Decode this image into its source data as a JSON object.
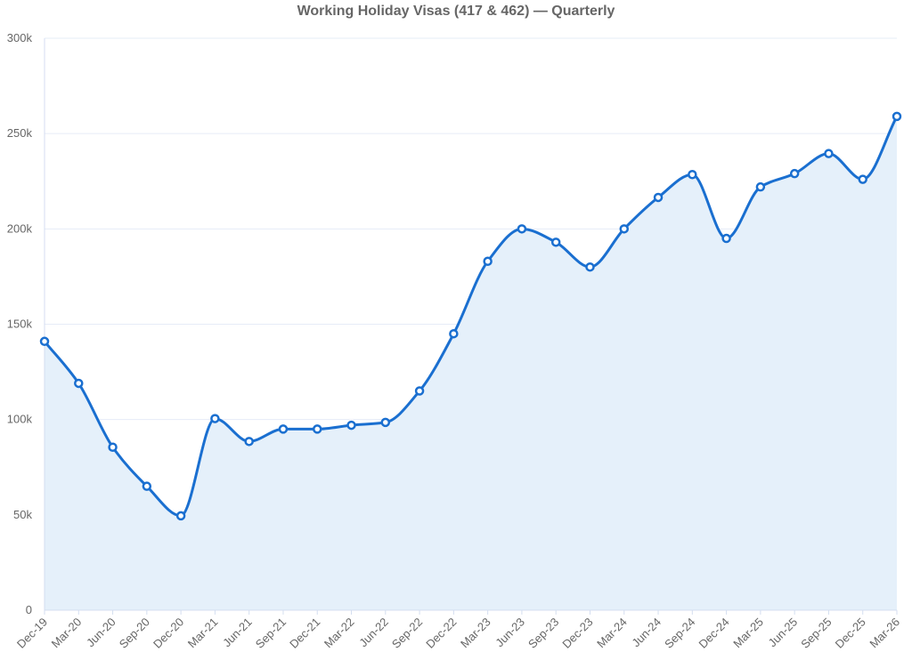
{
  "chart_data": {
    "type": "area",
    "title": "Working Holiday Visas (417 & 462) — Quarterly",
    "xlabel": "",
    "ylabel": "",
    "ylim": [
      0,
      300000
    ],
    "y_ticks": [
      0,
      50000,
      100000,
      150000,
      200000,
      250000,
      300000
    ],
    "y_tick_labels": [
      "0",
      "50k",
      "100k",
      "150k",
      "200k",
      "250k",
      "300k"
    ],
    "grid": true,
    "legend": "none",
    "categories": [
      "Dec-19",
      "Mar-20",
      "Jun-20",
      "Sep-20",
      "Dec-20",
      "Mar-21",
      "Jun-21",
      "Sep-21",
      "Dec-21",
      "Mar-22",
      "Jun-22",
      "Sep-22",
      "Dec-22",
      "Mar-23",
      "Jun-23",
      "Sep-23",
      "Dec-23",
      "Mar-24",
      "Jun-24",
      "Sep-24",
      "Dec-24",
      "Mar-25",
      "Jun-25",
      "Sep-25",
      "Dec-25",
      "Mar-26"
    ],
    "series": [
      {
        "values": [
          141000,
          119000,
          85500,
          65000,
          49500,
          100500,
          88500,
          95000,
          95000,
          97000,
          98500,
          115000,
          145000,
          183000,
          200000,
          193000,
          180000,
          200000,
          216500,
          228500,
          195000,
          222000,
          229000,
          239500,
          226000,
          259000
        ],
        "line_color": "#1a6fd0",
        "fill_color": "#e5f0fa"
      }
    ]
  }
}
